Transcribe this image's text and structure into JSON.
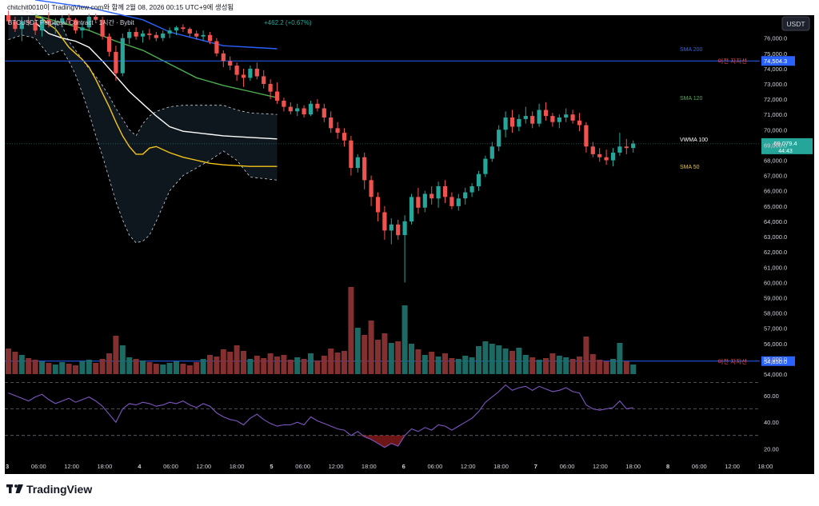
{
  "header": {
    "attribution": "chitchit0010이 TradingView.com와 함께 2월 08, 2026 00:15 UTC+9에 생성됨",
    "symbol_title": "BTCUSDT Perpetual Contract · 1시간 · Bybit",
    "change": "+462.2 (+0.67%)",
    "currency_button": "USDT"
  },
  "brand": {
    "logo_text": "TradingView"
  },
  "colors": {
    "background": "#000000",
    "up": "#26a69a",
    "down": "#ef5350",
    "sma200": "#2962ff",
    "sma120": "#4caf50",
    "sma50": "#f5c518",
    "vwma100": "#ffffff",
    "support_line": "#2962ff",
    "rsi": "#7e57c2"
  },
  "chart_data": {
    "type": "candlestick",
    "symbol": "BTCUSDT Perpetual Contract",
    "interval": "1시간",
    "exchange": "Bybit",
    "last_price": "69,079.4",
    "countdown": "44:43",
    "x_ticks": [
      "3",
      "06:00",
      "12:00",
      "18:00",
      "4",
      "06:00",
      "12:00",
      "18:00",
      "5",
      "06:00",
      "12:00",
      "18:00",
      "6",
      "06:00",
      "12:00",
      "18:00",
      "7",
      "06:00",
      "12:00",
      "18:00",
      "8",
      "06:00",
      "12:00",
      "18:00"
    ],
    "y_range": [
      54000,
      77500
    ],
    "y_ticks": [
      "76,000.0",
      "75,000.0",
      "74,000.0",
      "73,000.0",
      "72,000.0",
      "71,000.0",
      "70,000.0",
      "69,000.0",
      "68,000.0",
      "67,000.0",
      "66,000.0",
      "65,000.0",
      "64,000.0",
      "63,000.0",
      "62,000.0",
      "61,000.0",
      "60,000.0",
      "59,000.0",
      "58,000.0",
      "57,000.0",
      "56,000.0",
      "55,000.0",
      "54,000.0"
    ],
    "indicator_labels": [
      {
        "label": "SMA 200",
        "value": 75300,
        "color": "#2962ff"
      },
      {
        "label": "SMA 120",
        "value": 72100,
        "color": "#4caf50"
      },
      {
        "label": "VWMA 100",
        "value": 69400,
        "color": "#ffffff"
      },
      {
        "label": "SMA 50",
        "value": 67600,
        "color": "#f5c518"
      }
    ],
    "horizontal_lines": [
      {
        "label": "이전 지지선",
        "value": 74504.3,
        "tag": "74,504.3"
      },
      {
        "label": "이전 지지선",
        "value": 54850.0,
        "tag": "54,850.0"
      }
    ],
    "series": [
      {
        "name": "SMA 200",
        "points": [
          [
            4,
            78500
          ],
          [
            12,
            78000
          ],
          [
            20,
            77200
          ],
          [
            24,
            76400
          ],
          [
            32,
            75500
          ],
          [
            40,
            75300
          ]
        ]
      },
      {
        "name": "SMA 120",
        "points": [
          [
            4,
            77500
          ],
          [
            8,
            77000
          ],
          [
            12,
            76500
          ],
          [
            16,
            75800
          ],
          [
            20,
            75200
          ],
          [
            24,
            74300
          ],
          [
            28,
            73400
          ],
          [
            32,
            72900
          ],
          [
            36,
            72500
          ],
          [
            40,
            72100
          ]
        ]
      },
      {
        "name": "VWMA 100",
        "points": [
          [
            4,
            77000
          ],
          [
            6,
            76300
          ],
          [
            8,
            76000
          ],
          [
            10,
            75800
          ],
          [
            12,
            75400
          ],
          [
            14,
            74500
          ],
          [
            16,
            73500
          ],
          [
            18,
            72500
          ],
          [
            20,
            71700
          ],
          [
            22,
            70900
          ],
          [
            24,
            70200
          ],
          [
            26,
            69900
          ],
          [
            28,
            69800
          ],
          [
            30,
            69700
          ],
          [
            32,
            69600
          ],
          [
            34,
            69550
          ],
          [
            36,
            69500
          ],
          [
            40,
            69400
          ]
        ]
      },
      {
        "name": "SMA 50",
        "points": [
          [
            4,
            77400
          ],
          [
            5,
            77300
          ],
          [
            6,
            76900
          ],
          [
            7,
            76600
          ],
          [
            8,
            76000
          ],
          [
            9,
            75400
          ],
          [
            10,
            75000
          ],
          [
            11,
            74600
          ],
          [
            12,
            74100
          ],
          [
            13,
            73300
          ],
          [
            14,
            72400
          ],
          [
            15,
            71500
          ],
          [
            16,
            70500
          ],
          [
            17,
            69600
          ],
          [
            18,
            68900
          ],
          [
            19,
            68400
          ],
          [
            20,
            68400
          ],
          [
            21,
            68800
          ],
          [
            22,
            68900
          ],
          [
            24,
            68500
          ],
          [
            26,
            68200
          ],
          [
            28,
            68000
          ],
          [
            30,
            67800
          ],
          [
            32,
            67700
          ],
          [
            34,
            67650
          ],
          [
            36,
            67600
          ],
          [
            40,
            67600
          ]
        ]
      }
    ],
    "bollinger": {
      "upper": [
        [
          0,
          78200
        ],
        [
          2,
          77800
        ],
        [
          4,
          77600
        ],
        [
          6,
          77000
        ],
        [
          8,
          76800
        ],
        [
          9,
          75800
        ],
        [
          10,
          75200
        ],
        [
          11,
          74600
        ],
        [
          12,
          74000
        ],
        [
          13,
          73500
        ],
        [
          14,
          72900
        ],
        [
          15,
          72200
        ],
        [
          16,
          71400
        ],
        [
          17,
          70700
        ],
        [
          18,
          70000
        ],
        [
          19,
          69600
        ],
        [
          20,
          70400
        ],
        [
          21,
          70900
        ],
        [
          22,
          71200
        ],
        [
          24,
          71500
        ],
        [
          26,
          71600
        ],
        [
          28,
          71600
        ],
        [
          30,
          71600
        ],
        [
          32,
          71600
        ],
        [
          34,
          71300
        ],
        [
          36,
          71100
        ],
        [
          40,
          71000
        ]
      ],
      "lower": [
        [
          0,
          75900
        ],
        [
          2,
          76200
        ],
        [
          4,
          76000
        ],
        [
          6,
          74900
        ],
        [
          8,
          75200
        ],
        [
          9,
          74500
        ],
        [
          10,
          73600
        ],
        [
          11,
          72400
        ],
        [
          12,
          71100
        ],
        [
          13,
          69600
        ],
        [
          14,
          68300
        ],
        [
          15,
          66800
        ],
        [
          16,
          65300
        ],
        [
          17,
          64100
        ],
        [
          18,
          63100
        ],
        [
          19,
          62600
        ],
        [
          20,
          62700
        ],
        [
          21,
          63100
        ],
        [
          22,
          64000
        ],
        [
          24,
          66000
        ],
        [
          26,
          67000
        ],
        [
          28,
          67500
        ],
        [
          30,
          68000
        ],
        [
          32,
          68600
        ],
        [
          34,
          68000
        ],
        [
          36,
          66900
        ],
        [
          40,
          66700
        ]
      ]
    },
    "candles": [
      [
        77500,
        77800,
        76900,
        77100
      ],
      [
        77100,
        77400,
        76400,
        76600
      ],
      [
        76600,
        77400,
        75800,
        77100
      ],
      [
        77100,
        77400,
        76800,
        77000
      ],
      [
        77000,
        77300,
        76200,
        76500
      ],
      [
        76500,
        77400,
        76100,
        77200
      ],
      [
        77200,
        77700,
        76700,
        76900
      ],
      [
        76900,
        77300,
        76300,
        77000
      ],
      [
        77000,
        77500,
        76700,
        77300
      ],
      [
        77300,
        77600,
        76900,
        77200
      ],
      [
        77200,
        77300,
        76300,
        76500
      ],
      [
        76500,
        77000,
        76000,
        76700
      ],
      [
        76700,
        77600,
        76500,
        77400
      ],
      [
        77400,
        77600,
        77000,
        77200
      ],
      [
        77200,
        77400,
        75900,
        76100
      ],
      [
        76100,
        76300,
        74800,
        75100
      ],
      [
        75100,
        75500,
        73200,
        73700
      ],
      [
        73700,
        76300,
        73500,
        76000
      ],
      [
        76000,
        76600,
        75600,
        76400
      ],
      [
        76400,
        76700,
        75900,
        76100
      ],
      [
        76100,
        76500,
        75700,
        76300
      ],
      [
        76300,
        76600,
        75900,
        76200
      ],
      [
        76200,
        76400,
        75800,
        76000
      ],
      [
        76000,
        76500,
        75800,
        76300
      ],
      [
        76300,
        76700,
        76000,
        76500
      ],
      [
        76500,
        76800,
        76200,
        76700
      ],
      [
        76700,
        76900,
        76400,
        76600
      ],
      [
        76600,
        76700,
        76100,
        76300
      ],
      [
        76300,
        76500,
        75900,
        76100
      ],
      [
        76100,
        76500,
        75800,
        76200
      ],
      [
        76200,
        76400,
        75600,
        75800
      ],
      [
        75800,
        76000,
        74800,
        75000
      ],
      [
        75000,
        75200,
        74100,
        74500
      ],
      [
        74500,
        74800,
        73900,
        74200
      ],
      [
        74200,
        74400,
        73200,
        73600
      ],
      [
        73600,
        74000,
        72800,
        73400
      ],
      [
        73400,
        74200,
        73200,
        74000
      ],
      [
        74000,
        74400,
        73300,
        73500
      ],
      [
        73500,
        73900,
        72700,
        73000
      ],
      [
        73000,
        73300,
        72000,
        72500
      ],
      [
        72500,
        73100,
        71700,
        71900
      ],
      [
        71900,
        72100,
        71200,
        71500
      ],
      [
        71500,
        71800,
        71000,
        71200
      ],
      [
        71200,
        71700,
        70900,
        71400
      ],
      [
        71400,
        71600,
        70800,
        71000
      ],
      [
        71000,
        71900,
        70900,
        71700
      ],
      [
        71700,
        72000,
        71200,
        71400
      ],
      [
        71400,
        71700,
        70500,
        70800
      ],
      [
        70800,
        71200,
        69800,
        70100
      ],
      [
        70100,
        70500,
        69400,
        69800
      ],
      [
        69800,
        70100,
        68900,
        69300
      ],
      [
        69300,
        69600,
        67000,
        67500
      ],
      [
        67500,
        68400,
        67200,
        68200
      ],
      [
        68200,
        68500,
        66100,
        66700
      ],
      [
        66700,
        67000,
        65000,
        65600
      ],
      [
        65600,
        65900,
        64000,
        64600
      ],
      [
        64600,
        65000,
        62800,
        63400
      ],
      [
        63400,
        64200,
        62500,
        63800
      ],
      [
        63800,
        64100,
        62800,
        63100
      ],
      [
        63100,
        64400,
        60000,
        64000
      ],
      [
        64000,
        65800,
        63800,
        65600
      ],
      [
        65600,
        66200,
        64500,
        64900
      ],
      [
        64900,
        66000,
        64600,
        65800
      ],
      [
        65800,
        66300,
        65100,
        65500
      ],
      [
        65500,
        66600,
        64900,
        66300
      ],
      [
        66300,
        66700,
        65200,
        65600
      ],
      [
        65600,
        65900,
        64800,
        65000
      ],
      [
        65000,
        65800,
        64700,
        65500
      ],
      [
        65500,
        66200,
        65100,
        65900
      ],
      [
        65900,
        66500,
        65600,
        66300
      ],
      [
        66300,
        67300,
        66000,
        67100
      ],
      [
        67100,
        68300,
        66900,
        68100
      ],
      [
        68100,
        69200,
        67900,
        68900
      ],
      [
        68900,
        70300,
        68600,
        70000
      ],
      [
        70000,
        71200,
        69500,
        70800
      ],
      [
        70800,
        71300,
        69800,
        70200
      ],
      [
        70200,
        71000,
        69900,
        70700
      ],
      [
        70700,
        71500,
        70400,
        70900
      ],
      [
        70900,
        71200,
        70100,
        70400
      ],
      [
        70400,
        71700,
        70200,
        71300
      ],
      [
        71300,
        71800,
        70600,
        70900
      ],
      [
        70900,
        71100,
        70200,
        70500
      ],
      [
        70500,
        71000,
        70100,
        70800
      ],
      [
        70800,
        71400,
        70500,
        71000
      ],
      [
        71000,
        71300,
        70400,
        70600
      ],
      [
        70600,
        71100,
        69900,
        70300
      ],
      [
        70300,
        70500,
        68500,
        68900
      ],
      [
        68900,
        69200,
        68200,
        68400
      ],
      [
        68400,
        68800,
        67900,
        68200
      ],
      [
        68200,
        68700,
        67700,
        68000
      ],
      [
        68000,
        68800,
        67600,
        68500
      ],
      [
        68500,
        69800,
        68300,
        68900
      ],
      [
        68900,
        69400,
        68400,
        68800
      ],
      [
        68800,
        69300,
        68500,
        69100
      ]
    ],
    "volume_range": [
      0,
      12
    ],
    "volume": [
      3.2,
      2.8,
      2.4,
      2.0,
      1.8,
      1.6,
      1.4,
      1.2,
      1.5,
      1.3,
      1.1,
      1.6,
      1.8,
      1.4,
      1.9,
      2.6,
      4.8,
      3.6,
      2.1,
      1.9,
      1.7,
      1.5,
      1.3,
      1.2,
      1.4,
      1.6,
      1.3,
      1.1,
      1.5,
      1.9,
      2.4,
      2.2,
      3.1,
      2.8,
      3.6,
      2.9,
      1.9,
      2.3,
      2.0,
      2.6,
      2.2,
      2.4,
      1.8,
      2.1,
      1.9,
      2.6,
      1.7,
      2.3,
      3.2,
      2.7,
      2.9,
      10.9,
      5.8,
      4.9,
      6.7,
      4.3,
      5.1,
      3.9,
      4.1,
      8.6,
      3.8,
      3.1,
      2.4,
      2.8,
      2.2,
      2.6,
      2.0,
      1.9,
      2.3,
      2.1,
      3.5,
      4.1,
      3.8,
      3.6,
      3.2,
      2.9,
      3.3,
      2.4,
      2.1,
      1.8,
      2.0,
      2.6,
      2.3,
      2.1,
      1.9,
      2.2,
      4.7,
      2.5,
      1.8,
      1.6,
      1.9,
      3.9,
      1.6,
      1.2
    ],
    "rsi": {
      "range": [
        10,
        75
      ],
      "levels": [
        70,
        50,
        30
      ],
      "y_ticks": [
        "60.00",
        "40.00",
        "20.00"
      ],
      "values": [
        62,
        60,
        58,
        56,
        59,
        61,
        57,
        54,
        56,
        58,
        55,
        57,
        59,
        56,
        52,
        46,
        40,
        50,
        54,
        53,
        55,
        54,
        52,
        53,
        55,
        54,
        56,
        53,
        51,
        54,
        52,
        47,
        44,
        42,
        41,
        38,
        43,
        46,
        42,
        39,
        37,
        38,
        38,
        40,
        38,
        44,
        41,
        39,
        37,
        35,
        34,
        30,
        33,
        29,
        27,
        24,
        21,
        24,
        22,
        30,
        35,
        33,
        36,
        34,
        38,
        37,
        34,
        37,
        40,
        43,
        48,
        55,
        59,
        63,
        68,
        64,
        66,
        67,
        64,
        67,
        65,
        63,
        64,
        66,
        63,
        62,
        53,
        50,
        49,
        50,
        51,
        56,
        50,
        51
      ]
    }
  }
}
